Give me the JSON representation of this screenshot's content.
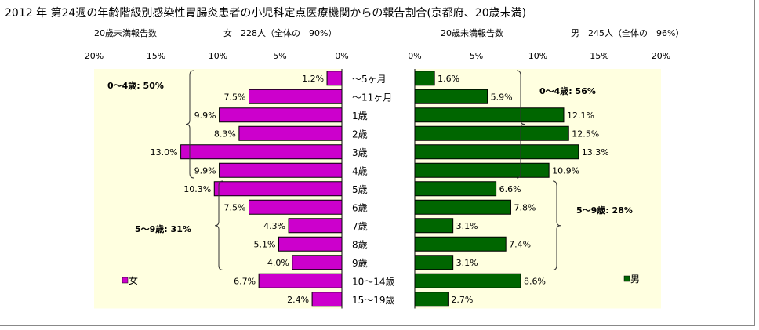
{
  "chart_data": {
    "type": "bar",
    "orientation": "horizontal",
    "title": "2012 年 第24週の年齢階級別感染性胃腸炎患者の小児科定点医療機関からの報告割合(京都府、20歳未満)",
    "categories": [
      "～5ヶ月",
      "～11ヶ月",
      "1歳",
      "2歳",
      "3歳",
      "4歳",
      "5歳",
      "6歳",
      "7歳",
      "8歳",
      "9歳",
      "10～14歳",
      "15～19歳"
    ],
    "xlim": [
      0,
      20
    ],
    "xticks": [
      "0%",
      "5%",
      "10%",
      "15%",
      "20%"
    ],
    "series": [
      {
        "name": "女",
        "header_left": "20歳未満報告数",
        "header_right": "女　228人（全体の　90%）",
        "color": "#cc00cc",
        "direction": "left",
        "values": [
          1.2,
          7.5,
          9.9,
          8.3,
          13.0,
          9.9,
          10.3,
          7.5,
          4.3,
          5.1,
          4.0,
          6.7,
          2.4
        ],
        "labels": [
          "1.2%",
          "7.5%",
          "9.9%",
          "8.3%",
          "13.0%",
          "9.9%",
          "10.3%",
          "7.5%",
          "4.3%",
          "5.1%",
          "4.0%",
          "6.7%",
          "2.4%"
        ],
        "groups": [
          {
            "label": "0～4歳: 50%",
            "from": 0,
            "to": 5
          },
          {
            "label": "5～9歳: 31%",
            "from": 6,
            "to": 10
          }
        ]
      },
      {
        "name": "男",
        "header_left": "20歳未満報告数",
        "header_right": "男　245人（全体の　96%）",
        "color": "#006600",
        "direction": "right",
        "values": [
          1.6,
          5.9,
          12.1,
          12.5,
          13.3,
          10.9,
          6.6,
          7.8,
          3.1,
          7.4,
          3.1,
          8.6,
          2.7
        ],
        "labels": [
          "1.6%",
          "5.9%",
          "12.1%",
          "12.5%",
          "13.3%",
          "10.9%",
          "6.6%",
          "7.8%",
          "3.1%",
          "7.4%",
          "3.1%",
          "8.6%",
          "2.7%"
        ],
        "groups": [
          {
            "label": "0～4歳: 56%",
            "from": 0,
            "to": 5
          },
          {
            "label": "5～9歳: 28%",
            "from": 6,
            "to": 10
          }
        ]
      }
    ],
    "grid": false,
    "plot_background": "#ffffe0",
    "legend": "bottom-left of each panel"
  }
}
